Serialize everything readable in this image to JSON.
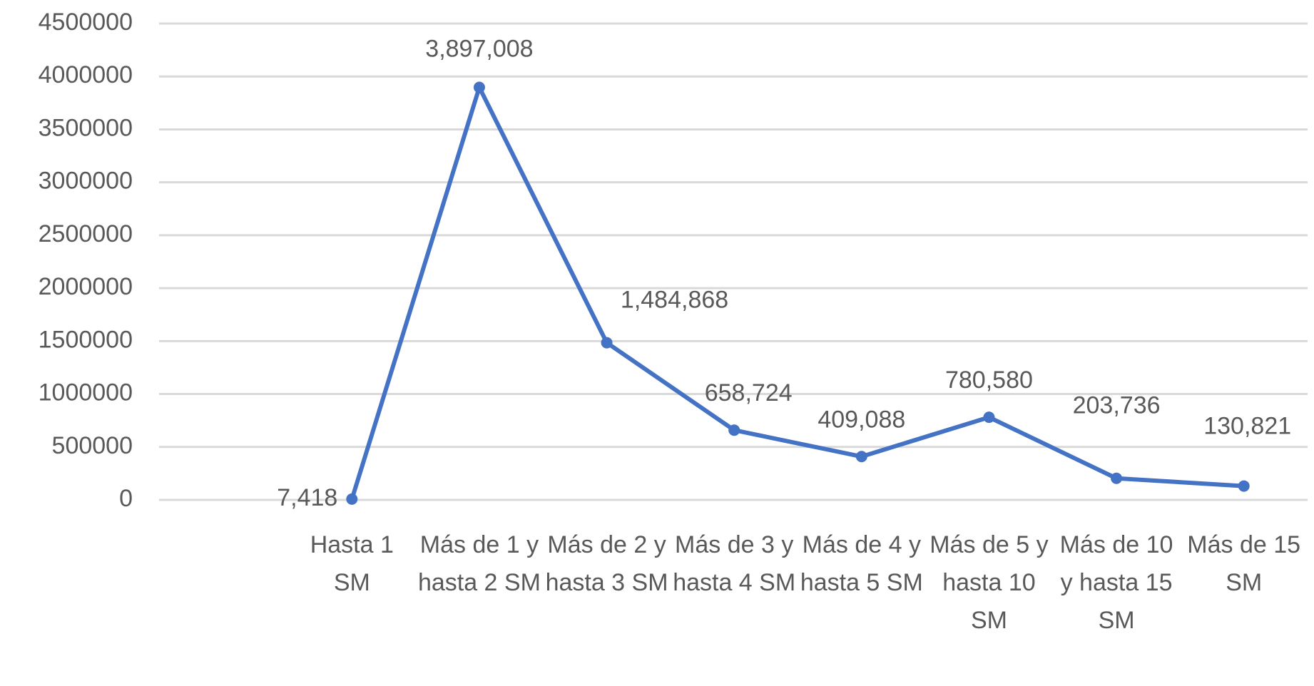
{
  "chart_data": {
    "type": "line",
    "categories": [
      "Hasta 1 SM",
      "Más de 1 y hasta 2 SM",
      "Más de 2 y hasta 3 SM",
      "Más de 3 y hasta 4 SM",
      "Más de 4 y hasta 5 SM",
      "Más de 5 y hasta 10 SM",
      "Más de 10 y hasta 15 SM",
      "Más de 15 SM"
    ],
    "values": [
      7418,
      3897008,
      1484868,
      658724,
      409088,
      780580,
      203736,
      130821
    ],
    "value_labels": [
      "7,418",
      "3,897,008",
      "1,484,868",
      "658,724",
      "409,088",
      "780,580",
      "203,736",
      "130,821"
    ],
    "color": "#4472c4",
    "ylim": [
      0,
      4500000
    ],
    "yticks": [
      0,
      500000,
      1000000,
      1500000,
      2000000,
      2500000,
      3000000,
      3500000,
      4000000,
      4500000
    ],
    "grid": true
  }
}
